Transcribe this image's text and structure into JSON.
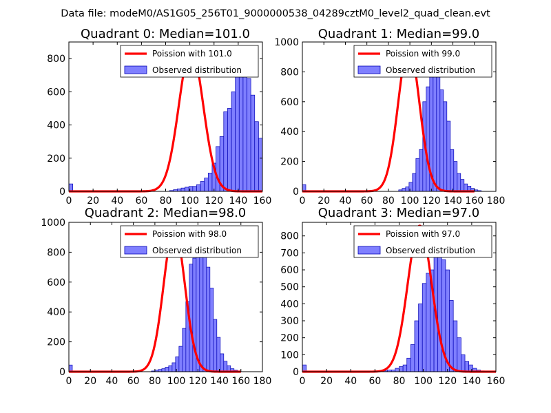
{
  "figure_title": "Data file: modeM0/AS1G05_256T01_9000000538_04289cztM0_level2_quad_clean.evt",
  "colors": {
    "hist_fill": "#7f7fff",
    "hist_edge": "#0000b4",
    "poisson": "#ff0000",
    "axes": "#000000"
  },
  "chart_data": [
    {
      "type": "bar",
      "title": "Quadrant 0: Median=101.0",
      "legend": [
        "Poission with 101.0",
        "Observed distribution"
      ],
      "legend_loc": "top-right",
      "xlim": [
        0,
        160
      ],
      "ylim": [
        0,
        900
      ],
      "xticks": [
        0,
        20,
        40,
        60,
        80,
        100,
        120,
        140,
        160
      ],
      "yticks": [
        0,
        200,
        400,
        600,
        800
      ],
      "median": 101.0,
      "bin_start": 0,
      "bin_width": 3.2,
      "values": [
        45,
        0,
        0,
        0,
        0,
        0,
        0,
        0,
        0,
        0,
        0,
        0,
        0,
        0,
        0,
        0,
        0,
        0,
        0,
        0,
        0,
        0,
        0,
        0,
        0,
        0,
        5,
        10,
        15,
        20,
        25,
        30,
        30,
        40,
        60,
        80,
        110,
        170,
        270,
        330,
        480,
        500,
        600,
        700,
        850,
        720,
        680,
        580,
        420,
        320,
        240,
        160,
        80,
        50,
        40,
        30,
        20,
        10,
        5,
        5,
        0,
        0,
        0,
        0,
        0,
        0,
        0,
        0,
        0,
        0
      ],
      "poisson_scale": 860
    },
    {
      "type": "bar",
      "title": "Quadrant 1: Median=99.0",
      "legend": [
        "Poission with 99.0",
        "Observed distribution"
      ],
      "legend_loc": "top-right",
      "xlim": [
        0,
        180
      ],
      "ylim": [
        0,
        1000
      ],
      "xticks": [
        0,
        20,
        40,
        60,
        80,
        100,
        120,
        140,
        160,
        180
      ],
      "yticks": [
        0,
        200,
        400,
        600,
        800,
        1000
      ],
      "median": 99.0,
      "bin_start": 0,
      "bin_width": 3.2,
      "values": [
        45,
        0,
        0,
        0,
        0,
        0,
        0,
        0,
        0,
        0,
        0,
        0,
        0,
        0,
        0,
        0,
        0,
        0,
        0,
        0,
        0,
        0,
        0,
        0,
        0,
        0,
        0,
        0,
        10,
        20,
        30,
        60,
        120,
        220,
        280,
        600,
        700,
        900,
        950,
        780,
        680,
        600,
        470,
        280,
        200,
        120,
        80,
        50,
        35,
        20,
        10,
        5,
        0,
        0,
        0,
        0,
        0,
        0,
        0,
        0,
        0
      ],
      "poisson_scale": 970
    },
    {
      "type": "bar",
      "title": "Quadrant 2: Median=98.0",
      "legend": [
        "Poission with 98.0",
        "Observed distribution"
      ],
      "legend_loc": "top-right",
      "xlim": [
        0,
        180
      ],
      "ylim": [
        0,
        1000
      ],
      "xticks": [
        0,
        20,
        40,
        60,
        80,
        100,
        120,
        140,
        160,
        180
      ],
      "yticks": [
        0,
        200,
        400,
        600,
        800,
        1000
      ],
      "median": 98.0,
      "bin_start": 0,
      "bin_width": 3.2,
      "values": [
        45,
        0,
        0,
        0,
        0,
        0,
        0,
        0,
        0,
        0,
        0,
        0,
        0,
        0,
        0,
        0,
        0,
        0,
        0,
        0,
        0,
        0,
        0,
        0,
        5,
        10,
        15,
        20,
        30,
        40,
        60,
        100,
        170,
        290,
        470,
        720,
        760,
        830,
        880,
        780,
        700,
        560,
        350,
        230,
        120,
        70,
        40,
        20,
        10,
        5,
        0,
        0,
        0,
        0,
        0,
        0,
        0,
        0,
        0
      ],
      "poisson_scale": 960
    },
    {
      "type": "bar",
      "title": "Quadrant 3: Median=97.0",
      "legend": [
        "Poission with 97.0",
        "Observed distribution"
      ],
      "legend_loc": "top-right",
      "xlim": [
        0,
        160
      ],
      "ylim": [
        0,
        880
      ],
      "xticks": [
        0,
        20,
        40,
        60,
        80,
        100,
        120,
        140,
        160
      ],
      "yticks": [
        0,
        100,
        200,
        300,
        400,
        500,
        600,
        700,
        800
      ],
      "median": 97.0,
      "bin_start": 0,
      "bin_width": 3.2,
      "values": [
        40,
        0,
        0,
        0,
        0,
        0,
        0,
        0,
        0,
        0,
        0,
        0,
        0,
        0,
        0,
        0,
        0,
        0,
        0,
        0,
        5,
        5,
        10,
        10,
        20,
        30,
        40,
        80,
        160,
        300,
        400,
        520,
        580,
        600,
        840,
        760,
        660,
        600,
        420,
        300,
        200,
        100,
        60,
        40,
        20,
        10,
        5,
        0,
        0,
        0,
        0,
        0,
        0,
        0,
        0,
        0
      ],
      "poisson_scale": 860
    }
  ]
}
